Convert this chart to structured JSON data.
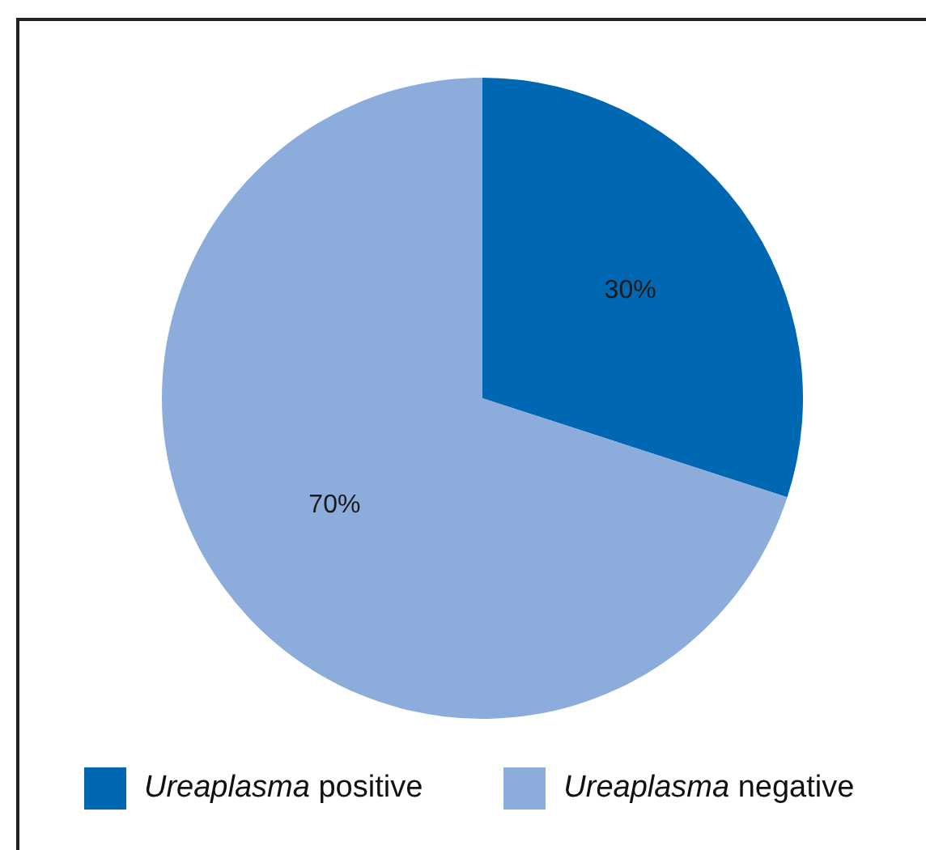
{
  "chart_data": {
    "type": "pie",
    "categories": [
      "Ureaplasma positive",
      "Ureaplasma negative"
    ],
    "values": [
      30,
      70
    ],
    "colors": [
      "#0067b2",
      "#8cacdb"
    ],
    "value_labels": [
      "30%",
      "70%"
    ],
    "legend": "bottom"
  }
}
